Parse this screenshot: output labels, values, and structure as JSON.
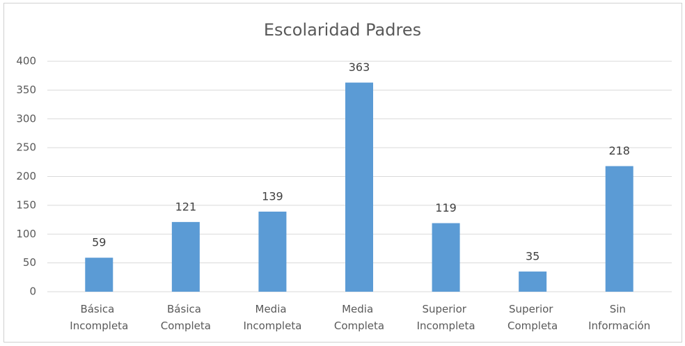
{
  "chart_data": {
    "type": "bar",
    "title": "Escolaridad Padres",
    "categories": [
      "Básica Incompleta",
      "Básica Completa",
      "Media Incompleta",
      "Media Completa",
      "Superior Incompleta",
      "Superior Completa",
      "Sin Información"
    ],
    "values": [
      59,
      121,
      139,
      363,
      119,
      35,
      218
    ],
    "color": "#5b9bd5",
    "ylim": [
      0,
      400
    ],
    "yticks": [
      0,
      50,
      100,
      150,
      200,
      250,
      300,
      350,
      400
    ],
    "grid": true
  }
}
